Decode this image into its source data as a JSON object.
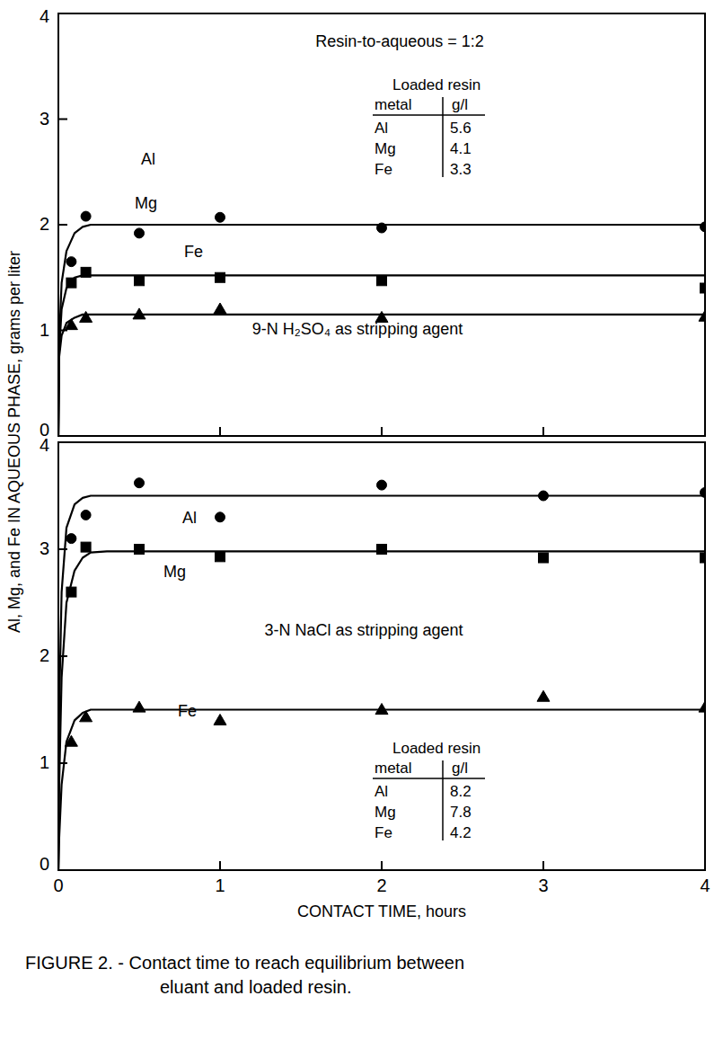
{
  "chart_data": [
    {
      "type": "scatter",
      "ylabel": "Al, Mg, and Fe IN AQUEOUS PHASE, grams per liter",
      "annotations": [
        "Resin-to-aqueous = 1:2",
        "9-N H₂SO₄ as stripping agent"
      ],
      "loaded_resin": {
        "title": "Loaded resin",
        "header": [
          "metal",
          "g/l"
        ],
        "rows": [
          [
            "Al",
            5.6
          ],
          [
            "Mg",
            4.1
          ],
          [
            "Fe",
            3.3
          ]
        ]
      },
      "xlim": [
        0,
        4
      ],
      "xticks": [
        0,
        1,
        2,
        3,
        4
      ],
      "ylim": [
        0,
        4
      ],
      "yticks": [
        0,
        1,
        2,
        3,
        4
      ],
      "tick_labels": "y",
      "series": [
        {
          "name": "Al",
          "color": "#000000",
          "marker": "circle",
          "line_style": "solid",
          "x": [
            0.08,
            0.17,
            0.5,
            1,
            2,
            4
          ],
          "values": [
            1.65,
            2.08,
            1.92,
            2.07,
            1.97,
            1.98
          ],
          "fit_x": [
            0,
            0.005,
            0.02,
            0.05,
            0.1,
            0.15,
            0.2,
            0.3,
            4
          ],
          "fit_values": [
            0,
            0.9,
            1.45,
            1.75,
            1.92,
            1.98,
            2.0,
            2.0,
            2.0
          ]
        },
        {
          "name": "Mg",
          "color": "#000000",
          "marker": "square",
          "line_style": "solid",
          "x": [
            0.08,
            0.17,
            0.5,
            1,
            2,
            4
          ],
          "values": [
            1.45,
            1.55,
            1.47,
            1.5,
            1.47,
            1.4
          ],
          "fit_x": [
            0,
            0.005,
            0.02,
            0.05,
            0.1,
            0.15,
            0.2,
            0.3,
            4
          ],
          "fit_values": [
            0,
            0.8,
            1.2,
            1.4,
            1.5,
            1.52,
            1.52,
            1.52,
            1.52
          ]
        },
        {
          "name": "Fe",
          "color": "#000000",
          "marker": "triangle",
          "line_style": "solid",
          "x": [
            0.08,
            0.17,
            0.5,
            1,
            2,
            4
          ],
          "values": [
            1.05,
            1.12,
            1.15,
            1.2,
            1.12,
            1.13
          ],
          "fit_x": [
            0,
            0.005,
            0.02,
            0.05,
            0.1,
            0.15,
            0.2,
            0.3,
            4
          ],
          "fit_values": [
            0,
            0.75,
            0.95,
            1.07,
            1.12,
            1.15,
            1.15,
            1.15,
            1.15
          ]
        }
      ]
    },
    {
      "type": "scatter",
      "xlabel": "CONTACT TIME, hours",
      "annotations": [
        "3-N NaCl as stripping agent"
      ],
      "loaded_resin": {
        "title": "Loaded resin",
        "header": [
          "metal",
          "g/l"
        ],
        "rows": [
          [
            "Al",
            8.2
          ],
          [
            "Mg",
            7.8
          ],
          [
            "Fe",
            4.2
          ]
        ]
      },
      "xlim": [
        0,
        4
      ],
      "xticks": [
        0,
        1,
        2,
        3,
        4
      ],
      "ylim": [
        0,
        4
      ],
      "yticks": [
        0,
        1,
        2,
        3,
        4
      ],
      "series": [
        {
          "name": "Al",
          "color": "#000000",
          "marker": "circle",
          "line_style": "solid",
          "x": [
            0.08,
            0.17,
            0.5,
            1,
            2,
            3,
            4
          ],
          "values": [
            3.1,
            3.32,
            3.62,
            3.3,
            3.6,
            3.5,
            3.53
          ],
          "fit_x": [
            0,
            0.005,
            0.02,
            0.05,
            0.1,
            0.15,
            0.2,
            0.3,
            4
          ],
          "fit_values": [
            0,
            1.5,
            2.6,
            3.2,
            3.42,
            3.48,
            3.5,
            3.5,
            3.5
          ]
        },
        {
          "name": "Mg",
          "color": "#000000",
          "marker": "square",
          "line_style": "solid",
          "x": [
            0.08,
            0.17,
            0.5,
            1,
            2,
            3,
            4
          ],
          "values": [
            2.6,
            3.02,
            3.0,
            2.93,
            3.0,
            2.92,
            2.92
          ],
          "fit_x": [
            0,
            0.005,
            0.02,
            0.05,
            0.1,
            0.15,
            0.2,
            0.3,
            4
          ],
          "fit_values": [
            0,
            0.8,
            1.8,
            2.5,
            2.8,
            2.92,
            2.97,
            2.98,
            2.98
          ]
        },
        {
          "name": "Fe",
          "color": "#000000",
          "marker": "triangle",
          "line_style": "solid",
          "x": [
            0.08,
            0.17,
            0.5,
            1,
            2,
            3,
            4
          ],
          "values": [
            1.2,
            1.43,
            1.52,
            1.4,
            1.5,
            1.62,
            1.52
          ],
          "fit_x": [
            0,
            0.005,
            0.02,
            0.05,
            0.1,
            0.15,
            0.2,
            0.3,
            4
          ],
          "fit_values": [
            0,
            0.3,
            0.8,
            1.2,
            1.4,
            1.47,
            1.5,
            1.5,
            1.5
          ]
        }
      ]
    }
  ],
  "caption": [
    "FIGURE 2. - Contact time to reach equilibrium between",
    "eluant and loaded resin."
  ]
}
